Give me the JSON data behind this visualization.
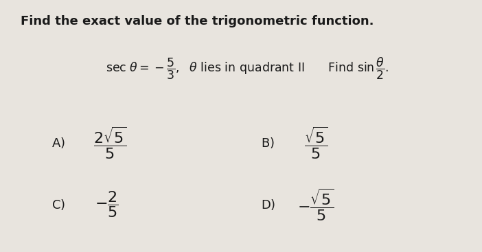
{
  "title": "Find the exact value of the trigonometric function.",
  "title_fontsize": 13,
  "title_fontweight": "bold",
  "bg_color": "#e8e4de",
  "text_color": "#1a1a1a",
  "figsize": [
    7.02,
    3.67
  ],
  "dpi": 100
}
